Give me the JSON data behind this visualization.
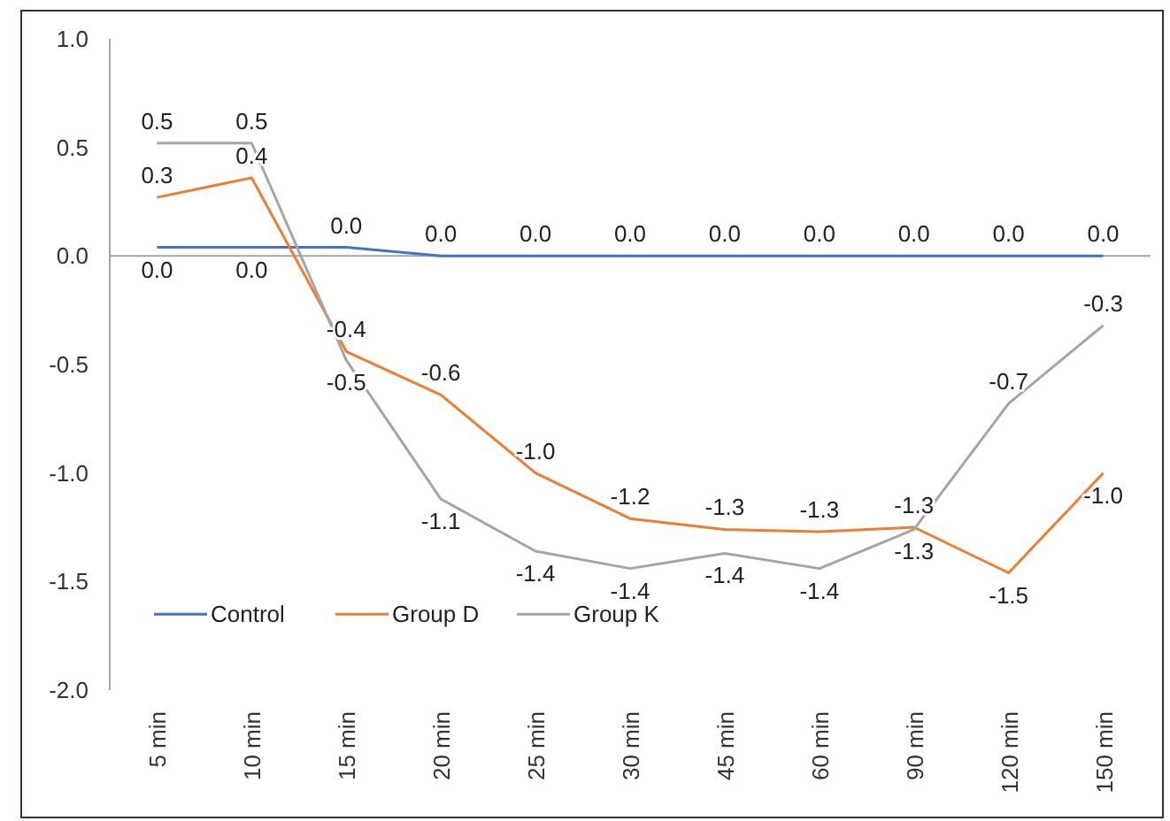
{
  "chart_data": {
    "type": "line",
    "categories": [
      "5 min",
      "10 min",
      "15 min",
      "20 min",
      "25 min",
      "30 min",
      "45 min",
      "60 min",
      "90 min",
      "120 min",
      "150 min"
    ],
    "series": [
      {
        "name": "Control",
        "color": "#4472c4",
        "values": [
          0.04,
          0.04,
          0.04,
          0,
          0,
          0,
          0,
          0,
          0,
          0,
          0
        ],
        "value_labels": [
          "0.0",
          "0.0",
          "0.0",
          "0.0",
          "0.0",
          "0.0",
          "0.0",
          "0.0",
          "0.0",
          "0.0",
          "0.0"
        ]
      },
      {
        "name": "Group D",
        "color": "#ed7d31",
        "values": [
          0.27,
          0.36,
          -0.44,
          -0.64,
          -1.0,
          -1.21,
          -1.26,
          -1.27,
          -1.25,
          -1.46,
          -1.0
        ],
        "value_labels": [
          "0.3",
          "0.4",
          "-0.4",
          "-0.6",
          "-1.0",
          "-1.2",
          "-1.3",
          "-1.3",
          "-1.3",
          "-1.5",
          "-1.0"
        ]
      },
      {
        "name": "Group K",
        "color": "#a5a5a5",
        "values": [
          0.52,
          0.52,
          -0.48,
          -1.12,
          -1.36,
          -1.44,
          -1.37,
          -1.44,
          -1.26,
          -0.68,
          -0.32
        ],
        "value_labels": [
          "0.5",
          "0.5",
          "-0.5",
          "-1.1",
          "-1.4",
          "-1.4",
          "-1.4",
          "-1.4",
          "-1.3",
          "-0.7",
          "-0.3"
        ]
      }
    ],
    "ylim": [
      -2.0,
      1.0
    ],
    "yticks": [
      {
        "value": -2,
        "label": "-2.0"
      },
      {
        "value": -1.5,
        "label": "-1.5"
      },
      {
        "value": -1,
        "label": "-1.0"
      },
      {
        "value": -0.5,
        "label": "-0.5"
      },
      {
        "value": 0,
        "label": "0.0"
      },
      {
        "value": 0.5,
        "label": "0.5"
      },
      {
        "value": 1,
        "label": "1.0"
      }
    ],
    "legend": "bottom left",
    "marker": "none",
    "line_style": "solid"
  }
}
